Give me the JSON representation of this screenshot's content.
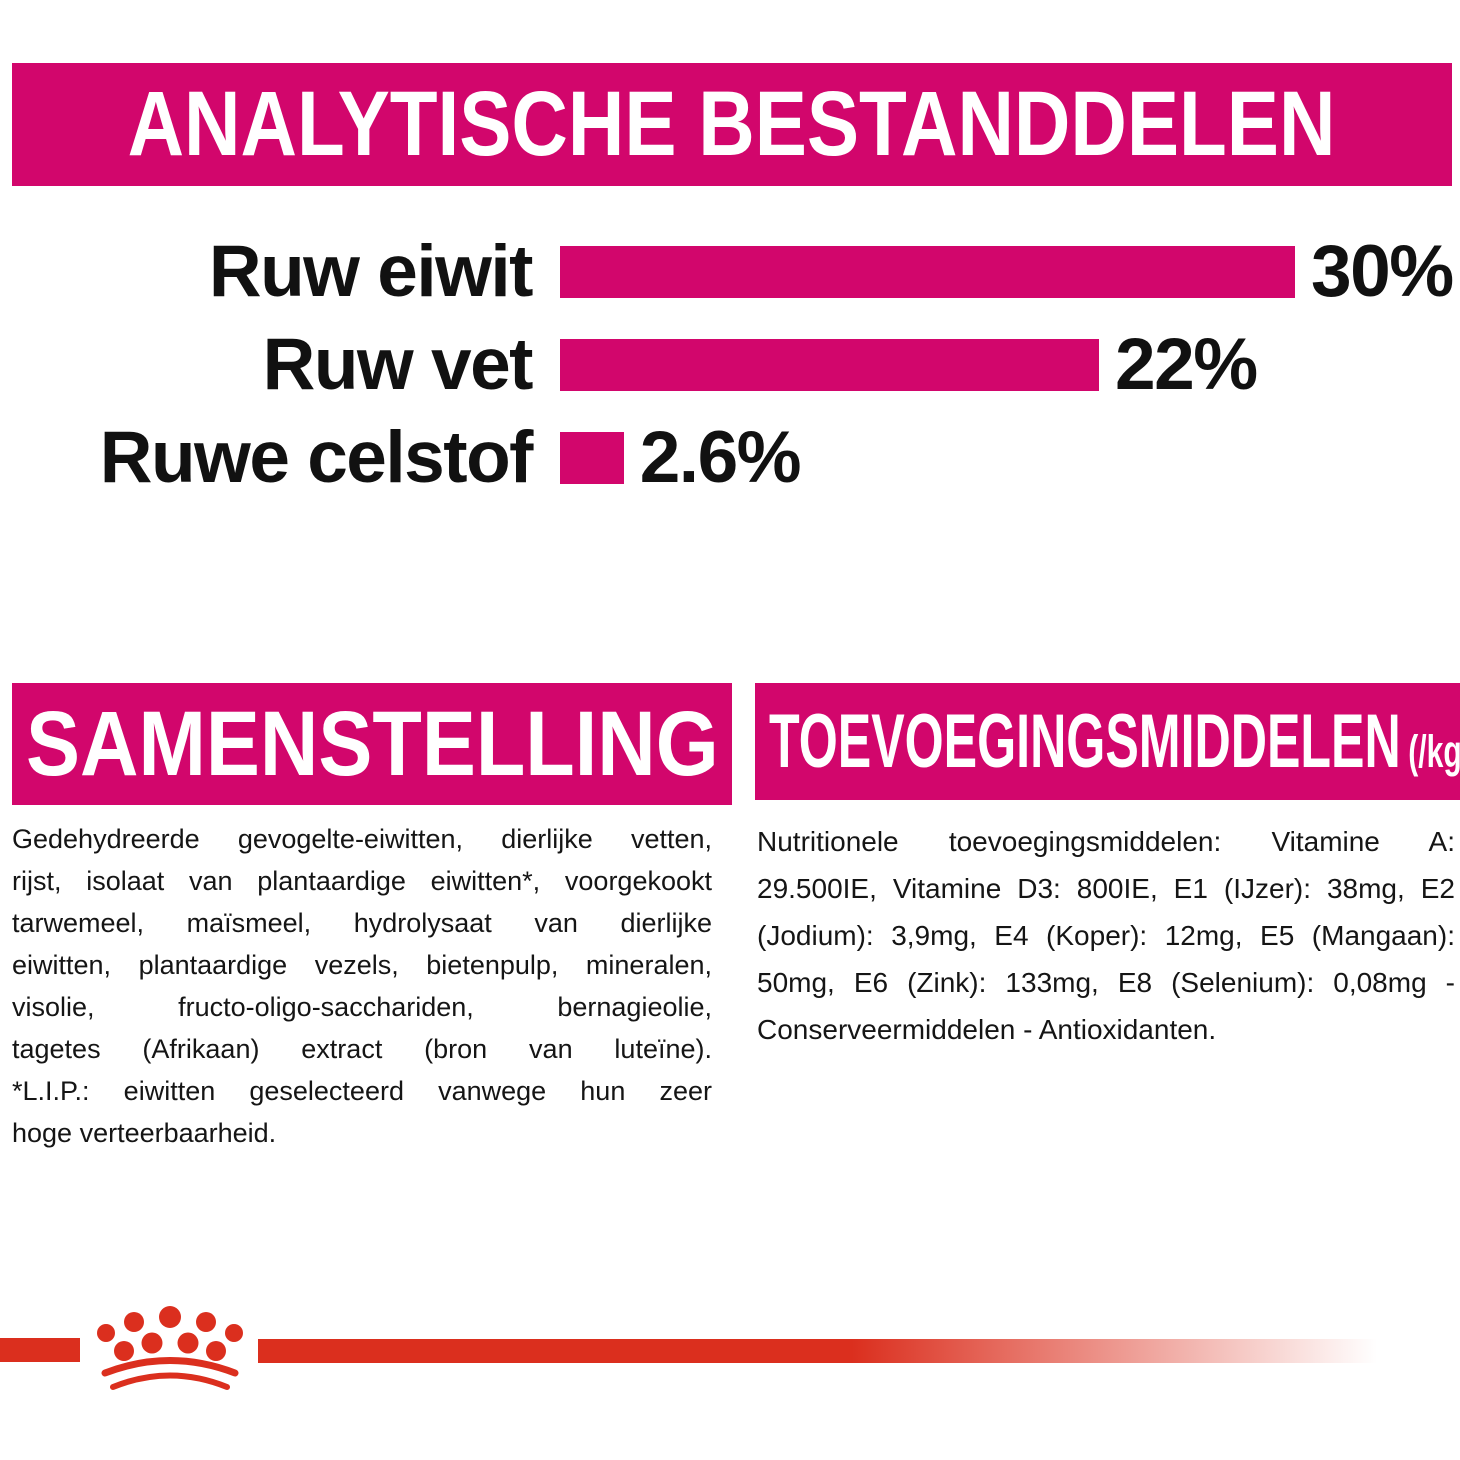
{
  "colors": {
    "pink": "#d2066c",
    "red": "#db2f1e",
    "text": "#111111",
    "background": "#ffffff"
  },
  "analytical": {
    "title": "ANALYTISCHE BESTANDDELEN"
  },
  "chart_data": {
    "type": "bar",
    "orientation": "horizontal",
    "title": "ANALYTISCHE BESTANDDELEN",
    "categories": [
      "Ruw eiwit",
      "Ruw vet",
      "Ruwe celstof"
    ],
    "values": [
      30,
      22,
      2.6
    ],
    "value_labels": [
      "30%",
      "22%",
      "2.6%"
    ],
    "unit": "%",
    "xlim": [
      0,
      30
    ],
    "bar_color": "#d2066c",
    "grid": false,
    "legend": false
  },
  "composition": {
    "title": "SAMENSTELLING",
    "lines": [
      "Gedehydreerde gevogelte-eiwitten, dierlijke vetten,",
      "rijst, isolaat van plantaardige eiwitten*, voorgekookt",
      "tarwemeel, maïsmeel, hydrolysaat van dierlijke",
      "eiwitten, plantaardige vezels, bietenpulp, mineralen,",
      "visolie, fructo-oligo-sacchariden, bernagieolie,",
      "tagetes (Afrikaan) extract (bron van luteïne).",
      "*L.I.P.: eiwitten geselecteerd vanwege hun zeer",
      "hoge verteerbaarheid."
    ]
  },
  "additives": {
    "title": "TOEVOEGINGSMIDDELEN",
    "unit": "(/kg)",
    "lines": [
      "Nutritionele toevoegingsmiddelen: Vitamine A:",
      "29.500IE, Vitamine D3: 800IE, E1 (IJzer): 38mg, E2",
      "(Jodium): 3,9mg, E4 (Koper): 12mg, E5 (Mangaan):",
      "50mg, E6 (Zink): 133mg, E8 (Selenium): 0,08mg -",
      "Conserveermiddelen - Antioxidanten."
    ]
  },
  "footer": {
    "logo_icon": "royal-canin-crown-paw-icon"
  }
}
